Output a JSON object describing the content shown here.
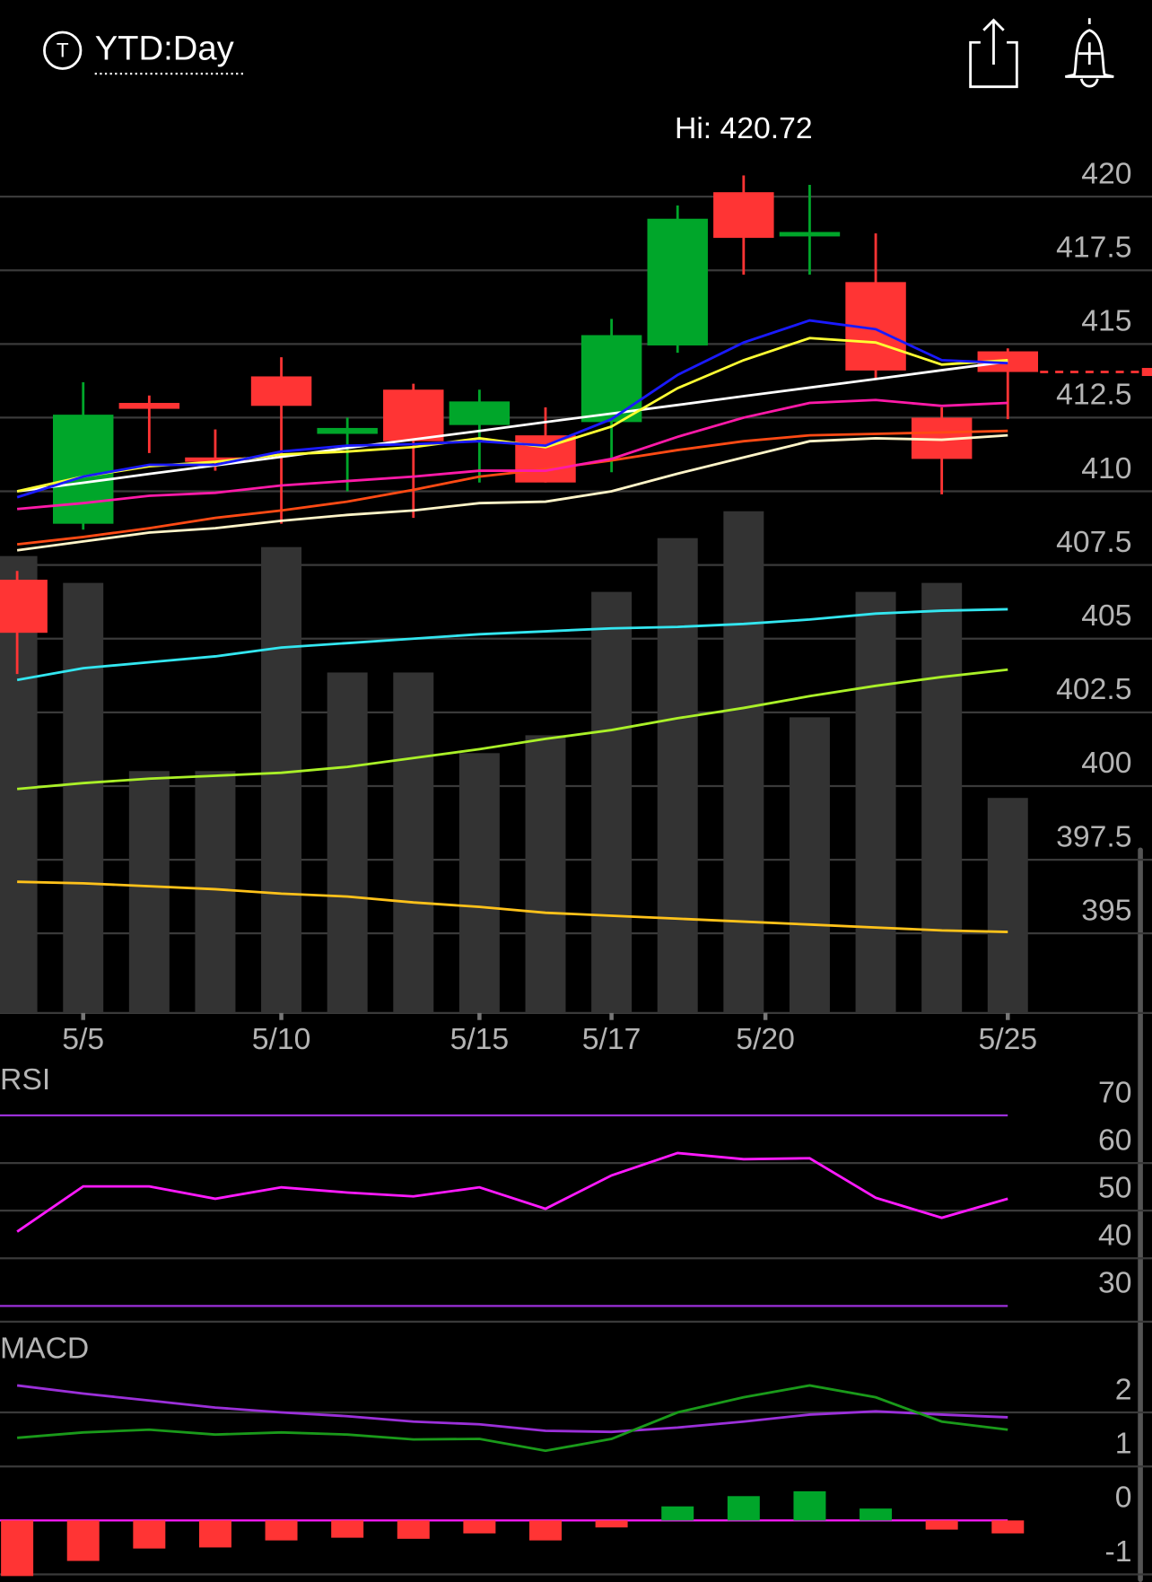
{
  "header": {
    "icon": "T",
    "title": "YTD:Day"
  },
  "chart_data": [
    {
      "type": "candlestick",
      "annotation": "Hi: 420.72",
      "x": [
        0,
        1,
        2,
        3,
        4,
        5,
        6,
        7,
        8,
        9,
        10,
        11,
        12,
        13,
        14,
        15
      ],
      "open": [
        407.0,
        408.9,
        413.0,
        411.15,
        413.9,
        411.95,
        413.45,
        412.25,
        411.9,
        412.35,
        414.95,
        420.15,
        418.65,
        417.1,
        412.5,
        414.75
      ],
      "high": [
        407.3,
        413.7,
        413.25,
        412.1,
        414.55,
        412.5,
        413.65,
        413.45,
        412.85,
        415.85,
        419.7,
        420.72,
        420.4,
        418.75,
        412.85,
        414.85
      ],
      "low": [
        403.8,
        408.7,
        411.3,
        410.7,
        408.9,
        410.0,
        409.1,
        410.3,
        410.3,
        410.65,
        414.7,
        417.35,
        417.35,
        413.8,
        409.9,
        412.45
      ],
      "close": [
        405.2,
        412.6,
        412.8,
        411.0,
        412.9,
        412.15,
        411.7,
        413.05,
        410.3,
        415.3,
        419.25,
        418.6,
        418.8,
        414.1,
        411.1,
        414.05
      ],
      "up_color": "#00a62a",
      "down_color": "#ff3434",
      "ylim": [
        392.3,
        422.7
      ],
      "yticks": [
        420,
        417.5,
        415,
        412.5,
        410,
        407.5,
        405,
        402.5,
        400,
        397.5,
        395
      ],
      "xticks": [
        {
          "value": 1,
          "label": "5/5"
        },
        {
          "value": 4,
          "label": "5/10"
        },
        {
          "value": 7,
          "label": "5/15"
        },
        {
          "value": 9,
          "label": "5/17"
        },
        {
          "value": 11.33,
          "label": "5/20"
        },
        {
          "value": 15,
          "label": "5/25"
        }
      ],
      "grid": true,
      "volume": {
        "color": "#333333",
        "ylim": [
          0,
          100
        ],
        "values": [
          51,
          48,
          27,
          27,
          52,
          38,
          38,
          29,
          31,
          47,
          53,
          56,
          33,
          47,
          48,
          24
        ]
      },
      "overlays": [
        {
          "color": "#fff5c8",
          "values": [
            408.0,
            408.3,
            408.6,
            408.75,
            409.0,
            409.2,
            409.35,
            409.6,
            409.65,
            410.0,
            410.6,
            411.15,
            411.7,
            411.8,
            411.75,
            411.9
          ]
        },
        {
          "color": "#ff4a14",
          "values": [
            408.2,
            408.45,
            408.75,
            409.1,
            409.35,
            409.65,
            410.05,
            410.5,
            410.75,
            411.05,
            411.4,
            411.7,
            411.9,
            411.95,
            412.0,
            412.05
          ]
        },
        {
          "color": "#ff1aa8",
          "values": [
            409.4,
            409.6,
            409.85,
            409.95,
            410.2,
            410.35,
            410.5,
            410.7,
            410.7,
            411.1,
            411.85,
            412.5,
            413.0,
            413.1,
            412.9,
            413.0
          ]
        },
        {
          "color": "#ffffff",
          "values": [
            410.0,
            410.29,
            410.59,
            410.88,
            411.17,
            411.47,
            411.76,
            412.05,
            412.35,
            412.64,
            412.93,
            413.23,
            413.52,
            413.81,
            414.11,
            414.4
          ]
        },
        {
          "color": "#ffff33",
          "values": [
            410.0,
            410.5,
            410.85,
            411.0,
            411.25,
            411.35,
            411.5,
            411.8,
            411.5,
            412.2,
            413.5,
            414.45,
            415.2,
            415.05,
            414.3,
            414.45
          ]
        },
        {
          "color": "#1a1aff",
          "values": [
            409.8,
            410.5,
            410.9,
            410.9,
            411.35,
            411.55,
            411.6,
            411.7,
            411.55,
            412.45,
            413.95,
            415.05,
            415.8,
            415.5,
            414.45,
            414.35
          ]
        },
        {
          "color": "#33e6f0",
          "values": [
            403.6,
            404.0,
            404.2,
            404.4,
            404.7,
            404.85,
            405.0,
            405.15,
            405.25,
            405.35,
            405.4,
            405.5,
            405.65,
            405.85,
            405.95,
            406.0
          ]
        },
        {
          "color": "#aaf028",
          "values": [
            399.9,
            400.1,
            400.25,
            400.35,
            400.45,
            400.65,
            400.95,
            401.25,
            401.6,
            401.9,
            402.3,
            402.65,
            403.05,
            403.4,
            403.7,
            403.95
          ]
        },
        {
          "color": "#ffc21a",
          "values": [
            396.75,
            396.7,
            396.6,
            396.5,
            396.35,
            396.25,
            396.05,
            395.9,
            395.7,
            395.6,
            395.5,
            395.4,
            395.3,
            395.2,
            395.1,
            395.05
          ]
        }
      ]
    },
    {
      "type": "line",
      "title": "RSI",
      "x": [
        0,
        1,
        2,
        3,
        4,
        5,
        6,
        7,
        8,
        9,
        10,
        11,
        12,
        13,
        14,
        15
      ],
      "series": [
        {
          "color": "#ff1aff",
          "values": [
            45.6,
            55.1,
            55.1,
            52.5,
            54.9,
            53.8,
            53.0,
            54.9,
            50.4,
            57.4,
            62.1,
            60.8,
            61.0,
            52.7,
            48.5,
            52.5
          ]
        }
      ],
      "ylim": [
        26.7,
        79
      ],
      "yticks": [
        70,
        60,
        50,
        40,
        30
      ],
      "level_color": "#9b30d9",
      "grid": true
    },
    {
      "type": "macd",
      "title": "MACD",
      "x": [
        0,
        1,
        2,
        3,
        4,
        5,
        6,
        7,
        8,
        9,
        10,
        11,
        12,
        13,
        14,
        15
      ],
      "series": [
        {
          "color": "#9b30d9",
          "values": [
            2.5,
            2.35,
            2.22,
            2.09,
            2.0,
            1.93,
            1.83,
            1.78,
            1.66,
            1.64,
            1.72,
            1.83,
            1.96,
            2.02,
            1.96,
            1.91
          ]
        },
        {
          "color": "#1a9a1a",
          "values": [
            1.53,
            1.63,
            1.68,
            1.59,
            1.63,
            1.59,
            1.5,
            1.51,
            1.29,
            1.51,
            2.0,
            2.28,
            2.5,
            2.28,
            1.83,
            1.68
          ]
        }
      ],
      "histogram": {
        "up_color": "#00a62a",
        "down_color": "#ff3434",
        "values": [
          -1.03,
          -0.75,
          -0.52,
          -0.5,
          -0.37,
          -0.32,
          -0.34,
          -0.24,
          -0.37,
          -0.13,
          0.26,
          0.45,
          0.54,
          0.22,
          -0.17,
          -0.24
        ]
      },
      "ylim": [
        -1.14,
        3.4
      ],
      "yticks": [
        2,
        1,
        0,
        -1
      ],
      "zero_color": "#ff1aff",
      "grid": true
    }
  ]
}
